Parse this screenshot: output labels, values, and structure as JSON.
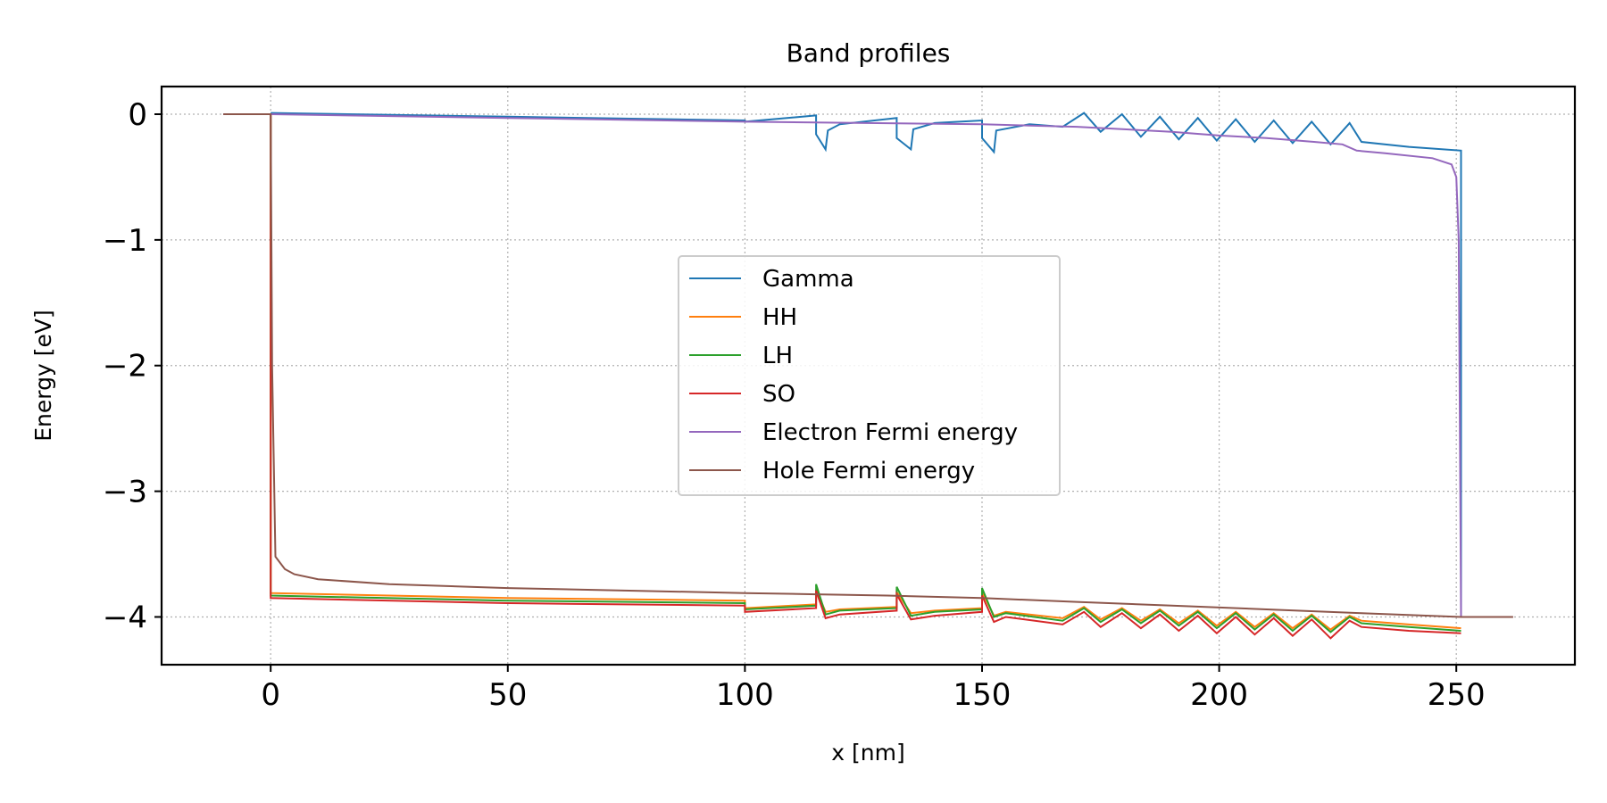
{
  "chart_data": {
    "type": "line",
    "title": "Band profiles",
    "xlabel": "x [nm]",
    "ylabel": "Energy [eV]",
    "xlim": [
      -23,
      275
    ],
    "ylim": [
      -4.38,
      0.22
    ],
    "xticks": [
      0,
      50,
      100,
      150,
      200,
      250
    ],
    "yticks": [
      0,
      -1,
      -2,
      -3,
      -4
    ],
    "xtick_labels": [
      "0",
      "50",
      "100",
      "150",
      "200",
      "250"
    ],
    "ytick_labels": [
      "0",
      "−1",
      "−2",
      "−3",
      "−4"
    ],
    "grid": true,
    "legend_position": "center",
    "series": [
      {
        "name": "Gamma",
        "color": "#1f77b4",
        "x": [
          0,
          50,
          100,
          100,
          115,
          115,
          117,
          117.5,
          120,
          132,
          132,
          135,
          135.5,
          140,
          150,
          150,
          152.5,
          153,
          160,
          167,
          167,
          171.5,
          171.5,
          175,
          175,
          179.5,
          179.5,
          183.5,
          183.5,
          187.5,
          187.5,
          191.5,
          191.5,
          195.5,
          195.5,
          199.5,
          199.5,
          203.5,
          203.5,
          207.5,
          207.5,
          211.5,
          211.5,
          215.5,
          215.5,
          219.5,
          219.5,
          223.5,
          223.5,
          227.5,
          227.5,
          230,
          240,
          251,
          251
        ],
        "y": [
          0.01,
          -0.02,
          -0.05,
          -0.06,
          -0.01,
          -0.16,
          -0.28,
          -0.13,
          -0.08,
          -0.03,
          -0.19,
          -0.28,
          -0.12,
          -0.07,
          -0.05,
          -0.19,
          -0.3,
          -0.13,
          -0.08,
          -0.1,
          -0.1,
          0.01,
          0.01,
          -0.14,
          -0.14,
          0.0,
          0.0,
          -0.18,
          -0.18,
          -0.02,
          -0.02,
          -0.2,
          -0.2,
          -0.03,
          -0.03,
          -0.21,
          -0.21,
          -0.04,
          -0.04,
          -0.22,
          -0.22,
          -0.05,
          -0.05,
          -0.23,
          -0.23,
          -0.06,
          -0.06,
          -0.24,
          -0.24,
          -0.07,
          -0.07,
          -0.22,
          -0.26,
          -0.29,
          -4.0
        ]
      },
      {
        "name": "HH",
        "color": "#ff7f0e",
        "x": [
          0,
          0,
          50,
          100,
          100,
          115,
          115,
          117,
          120,
          132,
          132,
          135,
          140,
          150,
          150,
          152.5,
          155,
          167,
          171.5,
          175,
          179.5,
          183.5,
          187.5,
          191.5,
          195.5,
          199.5,
          203.5,
          207.5,
          211.5,
          215.5,
          219.5,
          223.5,
          227.5,
          230,
          240,
          251,
          251
        ],
        "y": [
          0.0,
          -3.81,
          -3.85,
          -3.87,
          -3.93,
          -3.9,
          -3.78,
          -3.96,
          -3.94,
          -3.92,
          -3.8,
          -3.97,
          -3.95,
          -3.93,
          -3.8,
          -3.99,
          -3.96,
          -4.01,
          -3.92,
          -4.02,
          -3.93,
          -4.03,
          -3.94,
          -4.05,
          -3.95,
          -4.07,
          -3.96,
          -4.08,
          -3.97,
          -4.09,
          -3.98,
          -4.1,
          -3.99,
          -4.03,
          -4.06,
          -4.09,
          -4.09
        ]
      },
      {
        "name": "LH",
        "color": "#2ca02c",
        "x": [
          0,
          0,
          50,
          100,
          100,
          115,
          115,
          117,
          120,
          132,
          132,
          135,
          140,
          150,
          150,
          152.5,
          155,
          167,
          171.5,
          175,
          179.5,
          183.5,
          187.5,
          191.5,
          195.5,
          199.5,
          203.5,
          207.5,
          211.5,
          215.5,
          219.5,
          223.5,
          227.5,
          230,
          240,
          251,
          251
        ],
        "y": [
          0.0,
          -3.83,
          -3.87,
          -3.89,
          -3.94,
          -3.91,
          -3.74,
          -3.98,
          -3.95,
          -3.93,
          -3.76,
          -3.99,
          -3.96,
          -3.94,
          -3.77,
          -4.0,
          -3.97,
          -4.03,
          -3.93,
          -4.04,
          -3.94,
          -4.05,
          -3.95,
          -4.07,
          -3.96,
          -4.09,
          -3.97,
          -4.1,
          -3.98,
          -4.11,
          -3.99,
          -4.12,
          -4.0,
          -4.05,
          -4.08,
          -4.11,
          -4.11
        ]
      },
      {
        "name": "SO",
        "color": "#d62728",
        "x": [
          0,
          0,
          50,
          100,
          100,
          115,
          115,
          117,
          120,
          132,
          132,
          135,
          140,
          150,
          150,
          152.5,
          155,
          167,
          171.5,
          175,
          179.5,
          183.5,
          187.5,
          191.5,
          195.5,
          199.5,
          203.5,
          207.5,
          211.5,
          215.5,
          219.5,
          223.5,
          227.5,
          230,
          240,
          251,
          251
        ],
        "y": [
          0.0,
          -3.85,
          -3.89,
          -3.91,
          -3.96,
          -3.93,
          -3.79,
          -4.01,
          -3.98,
          -3.95,
          -3.82,
          -4.02,
          -3.99,
          -3.96,
          -3.83,
          -4.04,
          -4.0,
          -4.06,
          -3.96,
          -4.08,
          -3.97,
          -4.09,
          -3.98,
          -4.11,
          -3.99,
          -4.13,
          -4.0,
          -4.14,
          -4.01,
          -4.15,
          -4.02,
          -4.17,
          -4.03,
          -4.08,
          -4.11,
          -4.13,
          -4.13
        ]
      },
      {
        "name": "Electron Fermi energy",
        "color": "#9467bd",
        "x": [
          -10,
          0,
          50,
          100,
          150,
          160,
          170,
          180,
          190,
          200,
          210,
          220,
          226,
          229,
          235,
          245,
          249,
          250,
          250.5,
          251
        ],
        "y": [
          0.0,
          0.0,
          -0.03,
          -0.06,
          -0.08,
          -0.09,
          -0.1,
          -0.12,
          -0.14,
          -0.17,
          -0.19,
          -0.22,
          -0.24,
          -0.29,
          -0.31,
          -0.35,
          -0.4,
          -0.5,
          -1.0,
          -4.0
        ]
      },
      {
        "name": "Hole Fermi energy",
        "color": "#8c564b",
        "x": [
          -10,
          0,
          0.3,
          1,
          3,
          5,
          10,
          25,
          50,
          100,
          115,
          130,
          150,
          170,
          190,
          210,
          230,
          251,
          262
        ],
        "y": [
          0.0,
          0.0,
          -2.0,
          -3.52,
          -3.62,
          -3.66,
          -3.7,
          -3.74,
          -3.77,
          -3.81,
          -3.82,
          -3.83,
          -3.85,
          -3.88,
          -3.91,
          -3.94,
          -3.97,
          -4.0,
          -4.0
        ]
      }
    ]
  }
}
